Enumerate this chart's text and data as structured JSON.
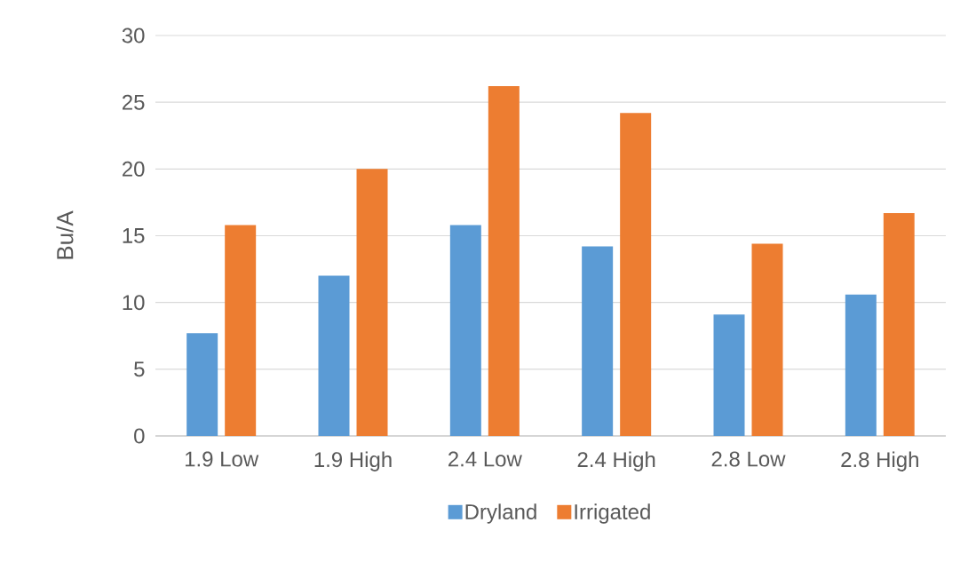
{
  "chart_data": {
    "type": "bar",
    "ylabel": "Bu/A",
    "categories": [
      "1.9 Low",
      "1.9 High",
      "2.4 Low",
      "2.4 High",
      "2.8 Low",
      "2.8 High"
    ],
    "series": [
      {
        "name": "Dryland",
        "color": "#5b9bd5",
        "values": [
          7.7,
          12.0,
          15.8,
          14.2,
          9.1,
          10.6
        ]
      },
      {
        "name": "Irrigated",
        "color": "#ed7d31",
        "values": [
          15.8,
          20.0,
          26.2,
          24.2,
          14.4,
          16.7
        ]
      }
    ],
    "ylim": [
      0,
      30
    ],
    "yticks": [
      0,
      5,
      10,
      15,
      20,
      25,
      30
    ],
    "grid": "y",
    "legend": "bottom"
  }
}
